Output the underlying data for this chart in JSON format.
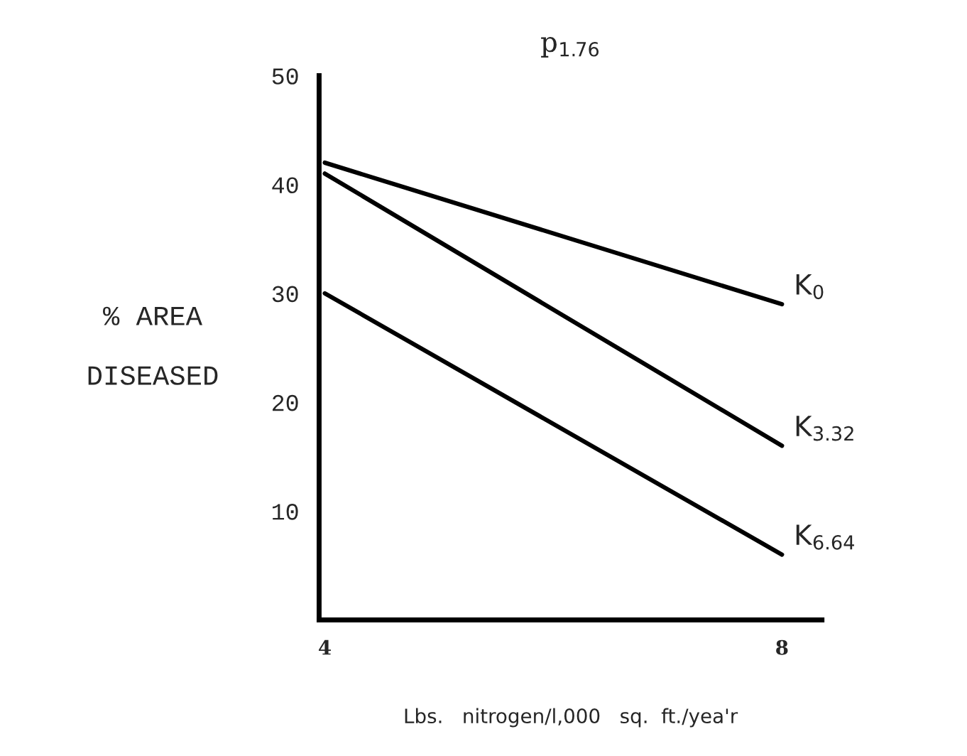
{
  "chart_data": {
    "type": "line",
    "title": "p$_{1.76}$",
    "xlabel": "Lbs.   nitrogen/l,000   sq.  ft./yea'r",
    "ylabel": "% AREA\n\nDISEASED",
    "x": [
      4,
      8
    ],
    "series": [
      {
        "name": "K$_{0}$",
        "color": "#000000",
        "values": [
          42,
          29
        ]
      },
      {
        "name": "K$_{3.32}$",
        "color": "#000000",
        "values": [
          41,
          16
        ]
      },
      {
        "name": "K$_{6.64}$",
        "color": "#000000",
        "values": [
          30,
          6
        ]
      }
    ],
    "xlim": [
      3.95,
      8.35
    ],
    "ylim": [
      0,
      50
    ],
    "xticks": [
      4,
      8
    ],
    "yticks": [
      {
        "value": 10,
        "label": "10"
      },
      {
        "value": 20,
        "label": "20"
      },
      {
        "value": 30,
        "label": "30"
      },
      {
        "value": 40,
        "label": "40"
      },
      {
        "value": 50,
        "label": "50"
      }
    ],
    "grid": false,
    "legend": false,
    "marker": "none",
    "line_style": "solid"
  }
}
